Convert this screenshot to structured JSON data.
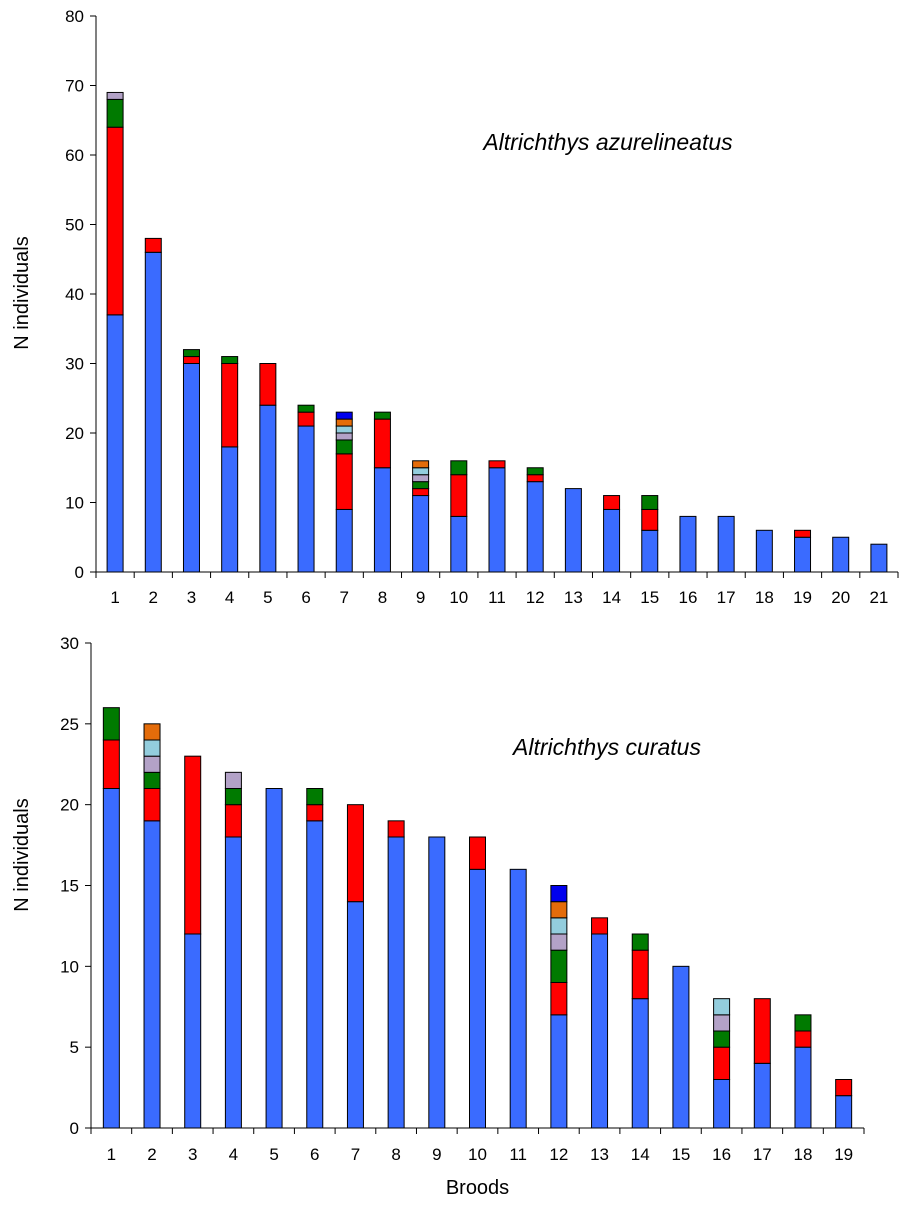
{
  "colors": {
    "seg1": "#3a6bff",
    "seg2": "#ff0000",
    "seg3": "#007a00",
    "seg4": "#b3a2c7",
    "seg5": "#93cddd",
    "seg6": "#e46c0a",
    "seg7": "#0000ee"
  },
  "chart_data": [
    {
      "type": "bar",
      "stacked": true,
      "title": "Altrichthys azurelineatus",
      "ylabel": "N individuals",
      "xlabel": "",
      "ylim": [
        0,
        80
      ],
      "yticks": [
        0,
        10,
        20,
        30,
        40,
        50,
        60,
        70,
        80
      ],
      "grid": false,
      "categories": [
        "1",
        "2",
        "3",
        "4",
        "5",
        "6",
        "7",
        "8",
        "9",
        "10",
        "11",
        "12",
        "13",
        "14",
        "15",
        "16",
        "17",
        "18",
        "19",
        "20",
        "21"
      ],
      "stacks": [
        [
          37,
          27,
          4,
          1
        ],
        [
          46,
          2
        ],
        [
          30,
          1,
          1
        ],
        [
          18,
          12,
          1
        ],
        [
          24,
          6
        ],
        [
          21,
          2,
          1
        ],
        [
          9,
          8,
          2,
          1,
          1,
          1,
          1
        ],
        [
          15,
          7,
          1
        ],
        [
          11,
          1,
          1,
          1,
          1,
          1
        ],
        [
          8,
          6,
          2
        ],
        [
          15,
          1
        ],
        [
          13,
          1,
          1
        ],
        [
          12
        ],
        [
          9,
          2
        ],
        [
          6,
          3,
          2
        ],
        [
          8
        ],
        [
          8
        ],
        [
          6
        ],
        [
          5,
          1
        ],
        [
          5
        ],
        [
          4
        ]
      ],
      "stack_colors": [
        [
          "seg1",
          "seg2",
          "seg3",
          "seg4"
        ],
        [
          "seg1",
          "seg2"
        ],
        [
          "seg1",
          "seg2",
          "seg3"
        ],
        [
          "seg1",
          "seg2",
          "seg3"
        ],
        [
          "seg1",
          "seg2"
        ],
        [
          "seg1",
          "seg2",
          "seg3"
        ],
        [
          "seg1",
          "seg2",
          "seg3",
          "seg4",
          "seg5",
          "seg6",
          "seg7"
        ],
        [
          "seg1",
          "seg2",
          "seg3"
        ],
        [
          "seg1",
          "seg2",
          "seg3",
          "seg4",
          "seg5",
          "seg6"
        ],
        [
          "seg1",
          "seg2",
          "seg3"
        ],
        [
          "seg1",
          "seg2"
        ],
        [
          "seg1",
          "seg2",
          "seg3"
        ],
        [
          "seg1"
        ],
        [
          "seg1",
          "seg2"
        ],
        [
          "seg1",
          "seg2",
          "seg3"
        ],
        [
          "seg1"
        ],
        [
          "seg1"
        ],
        [
          "seg1"
        ],
        [
          "seg1",
          "seg2"
        ],
        [
          "seg1"
        ],
        [
          "seg1"
        ]
      ]
    },
    {
      "type": "bar",
      "stacked": true,
      "title": "Altrichthys curatus",
      "ylabel": "N individuals",
      "xlabel": "Broods",
      "ylim": [
        0,
        30
      ],
      "yticks": [
        0,
        5,
        10,
        15,
        20,
        25,
        30
      ],
      "grid": false,
      "categories": [
        "1",
        "2",
        "3",
        "4",
        "5",
        "6",
        "7",
        "8",
        "9",
        "10",
        "11",
        "12",
        "13",
        "14",
        "15",
        "16",
        "17",
        "18",
        "19"
      ],
      "stacks": [
        [
          21,
          3,
          2
        ],
        [
          19,
          2,
          1,
          1,
          1,
          1
        ],
        [
          12,
          11
        ],
        [
          18,
          2,
          1,
          1
        ],
        [
          21
        ],
        [
          19,
          1,
          1
        ],
        [
          14,
          6
        ],
        [
          18,
          1
        ],
        [
          18
        ],
        [
          16,
          2
        ],
        [
          16
        ],
        [
          7,
          2,
          2,
          1,
          1,
          1,
          1
        ],
        [
          12,
          1
        ],
        [
          8,
          3,
          1
        ],
        [
          10
        ],
        [
          3,
          2,
          1,
          1,
          1
        ],
        [
          4,
          4
        ],
        [
          5,
          1,
          1
        ],
        [
          2,
          1
        ]
      ],
      "stack_colors": [
        [
          "seg1",
          "seg2",
          "seg3"
        ],
        [
          "seg1",
          "seg2",
          "seg3",
          "seg4",
          "seg5",
          "seg6"
        ],
        [
          "seg1",
          "seg2"
        ],
        [
          "seg1",
          "seg2",
          "seg3",
          "seg4"
        ],
        [
          "seg1"
        ],
        [
          "seg1",
          "seg2",
          "seg3"
        ],
        [
          "seg1",
          "seg2"
        ],
        [
          "seg1",
          "seg2"
        ],
        [
          "seg1"
        ],
        [
          "seg1",
          "seg2"
        ],
        [
          "seg1"
        ],
        [
          "seg1",
          "seg2",
          "seg3",
          "seg4",
          "seg5",
          "seg6",
          "seg7"
        ],
        [
          "seg1",
          "seg2"
        ],
        [
          "seg1",
          "seg2",
          "seg3"
        ],
        [
          "seg1"
        ],
        [
          "seg1",
          "seg2",
          "seg3",
          "seg4",
          "seg5"
        ],
        [
          "seg1",
          "seg2"
        ],
        [
          "seg1",
          "seg2",
          "seg3"
        ],
        [
          "seg1",
          "seg2"
        ]
      ]
    }
  ]
}
